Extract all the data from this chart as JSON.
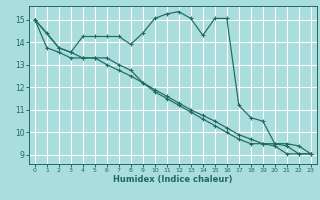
{
  "xlabel": "Humidex (Indice chaleur)",
  "xlim": [
    -0.5,
    23.5
  ],
  "ylim": [
    8.6,
    15.6
  ],
  "yticks": [
    9,
    10,
    11,
    12,
    13,
    14,
    15
  ],
  "xticks": [
    0,
    1,
    2,
    3,
    4,
    5,
    6,
    7,
    8,
    9,
    10,
    11,
    12,
    13,
    14,
    15,
    16,
    17,
    18,
    19,
    20,
    21,
    22,
    23
  ],
  "bg_color": "#aadddd",
  "grid_color": "#c8eaea",
  "line_color": "#1e6b5e",
  "line1_x": [
    0,
    1,
    2,
    3,
    4,
    5,
    6,
    7,
    8,
    9,
    10,
    11,
    12,
    13,
    14,
    15,
    16,
    17,
    18,
    19,
    20,
    21,
    22,
    23
  ],
  "line1_y": [
    15.0,
    14.4,
    13.75,
    13.55,
    14.25,
    14.25,
    14.25,
    14.25,
    13.9,
    14.4,
    15.05,
    15.25,
    15.35,
    15.05,
    14.3,
    15.05,
    15.05,
    11.2,
    10.65,
    10.5,
    9.5,
    9.5,
    9.4,
    9.05
  ],
  "line2_x": [
    0,
    1,
    2,
    3,
    4,
    5,
    6,
    7,
    8,
    9,
    10,
    11,
    12,
    13,
    14,
    15,
    16,
    17,
    18,
    19,
    20,
    21,
    22,
    23
  ],
  "line2_y": [
    15.0,
    13.75,
    13.55,
    13.3,
    13.3,
    13.3,
    13.0,
    12.75,
    12.5,
    12.2,
    11.9,
    11.6,
    11.3,
    11.0,
    10.75,
    10.5,
    10.2,
    9.9,
    9.7,
    9.5,
    9.5,
    9.4,
    9.05,
    9.05
  ],
  "line3_x": [
    0,
    2,
    3,
    4,
    5,
    6,
    7,
    8,
    9,
    10,
    11,
    12,
    13,
    14,
    15,
    16,
    17,
    18,
    19,
    20,
    21,
    22,
    23
  ],
  "line3_y": [
    15.0,
    13.75,
    13.55,
    13.3,
    13.3,
    13.3,
    13.0,
    12.75,
    12.2,
    11.8,
    11.5,
    11.2,
    10.9,
    10.6,
    10.3,
    10.0,
    9.7,
    9.5,
    9.5,
    9.4,
    9.05,
    9.05,
    9.05
  ]
}
